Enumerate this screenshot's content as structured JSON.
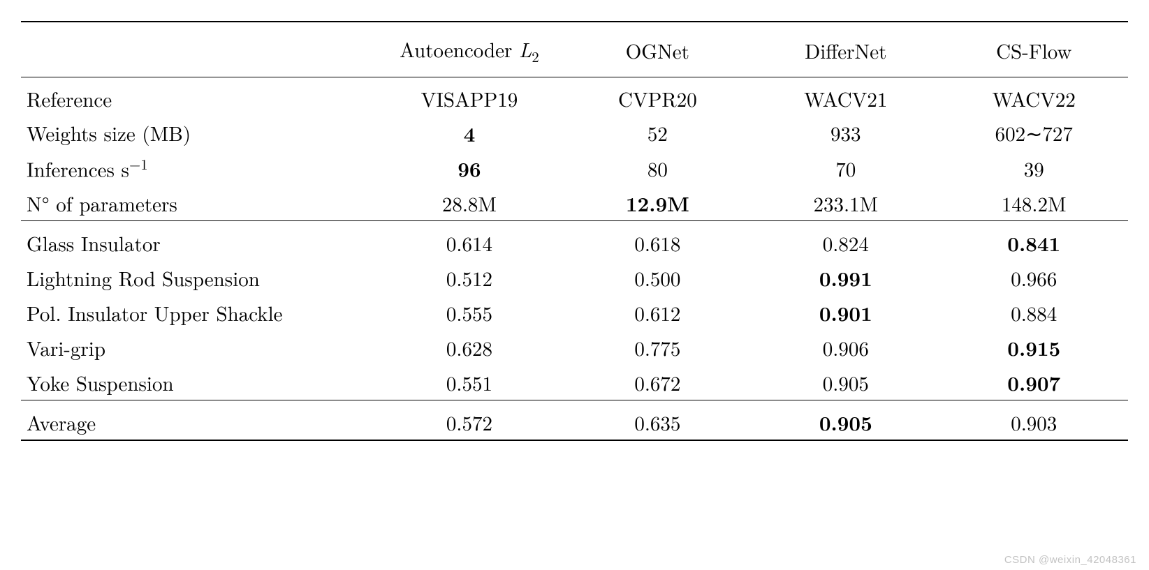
{
  "table": {
    "type": "table",
    "background_color": "#ffffff",
    "text_color": "#000000",
    "rule_color": "#000000",
    "font_family": "Latin Modern / Computer Modern (serif)",
    "base_fontsize_pt": 22,
    "bold_meaning": "best value in row",
    "columns": {
      "label_col_width_pct": 32,
      "data_col_width_pct": 17,
      "alignment": [
        "left",
        "center",
        "center",
        "center",
        "center"
      ]
    },
    "headers": {
      "row_label": "",
      "methods": [
        {
          "html": "Autoencoder <span style=\"font-style:italic\">L</span><span class=\"sub2\">2</span>"
        },
        {
          "html": "OGNet"
        },
        {
          "html": "DifferNet"
        },
        {
          "html": "CS-Flow"
        }
      ]
    },
    "meta_rows": [
      {
        "label": "Reference",
        "values": [
          "VISAPP19",
          "CVPR20",
          "WACV21",
          "WACV22"
        ],
        "bold": [
          false,
          false,
          false,
          false
        ]
      },
      {
        "label": "Weights size (MB)",
        "values": [
          "4",
          "52",
          "933",
          "602∼727"
        ],
        "bold": [
          true,
          false,
          false,
          false
        ]
      },
      {
        "label_html": "Inferences s<span class=\"supn1\">−1</span>",
        "label": "Inferences s-1",
        "values": [
          "96",
          "80",
          "70",
          "39"
        ],
        "bold": [
          true,
          false,
          false,
          false
        ]
      },
      {
        "label": "N° of parameters",
        "values": [
          "28.8M",
          "12.9M",
          "233.1M",
          "148.2M"
        ],
        "bold": [
          false,
          true,
          false,
          false
        ]
      }
    ],
    "data_rows": [
      {
        "label": "Glass Insulator",
        "values": [
          "0.614",
          "0.618",
          "0.824",
          "0.841"
        ],
        "bold": [
          false,
          false,
          false,
          true
        ]
      },
      {
        "label": "Lightning Rod Suspension",
        "values": [
          "0.512",
          "0.500",
          "0.991",
          "0.966"
        ],
        "bold": [
          false,
          false,
          true,
          false
        ]
      },
      {
        "label": "Pol. Insulator Upper Shackle",
        "values": [
          "0.555",
          "0.612",
          "0.901",
          "0.884"
        ],
        "bold": [
          false,
          false,
          true,
          false
        ]
      },
      {
        "label": "Vari-grip",
        "values": [
          "0.628",
          "0.775",
          "0.906",
          "0.915"
        ],
        "bold": [
          false,
          false,
          false,
          true
        ]
      },
      {
        "label": "Yoke Suspension",
        "values": [
          "0.551",
          "0.672",
          "0.905",
          "0.907"
        ],
        "bold": [
          false,
          false,
          false,
          true
        ]
      }
    ],
    "summary_row": {
      "label": "Average",
      "values": [
        "0.572",
        "0.635",
        "0.905",
        "0.903"
      ],
      "bold": [
        false,
        false,
        true,
        false
      ]
    }
  },
  "watermark": "CSDN @weixin_42048361"
}
